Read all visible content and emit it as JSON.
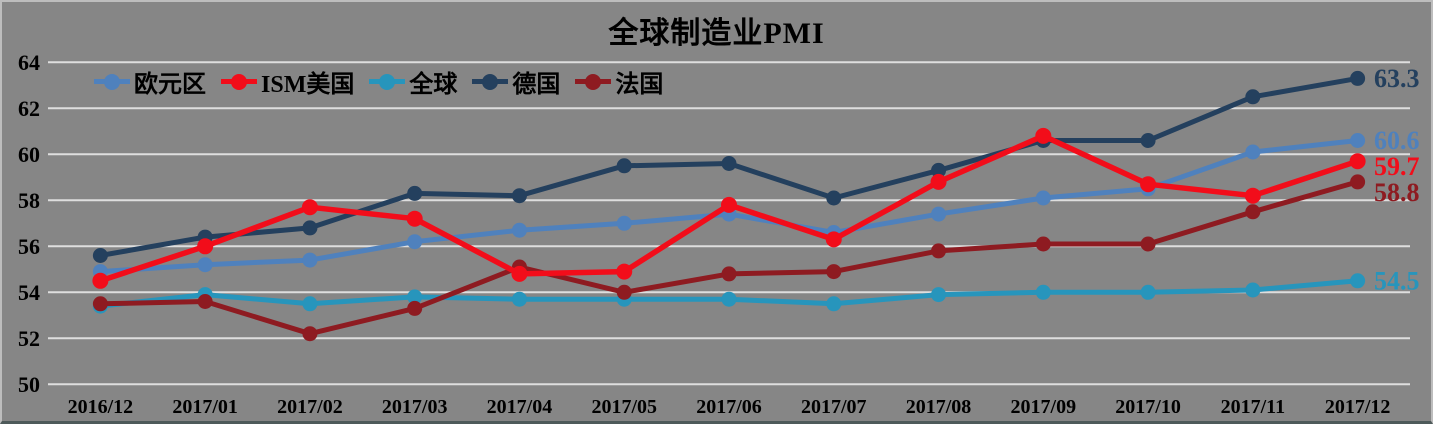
{
  "chart_data": {
    "type": "line",
    "title": "全球制造业PMI",
    "categories": [
      "2016/12",
      "2017/01",
      "2017/02",
      "2017/03",
      "2017/04",
      "2017/05",
      "2017/06",
      "2017/07",
      "2017/08",
      "2017/09",
      "2017/10",
      "2017/11",
      "2017/12"
    ],
    "series": [
      {
        "name": "欧元区",
        "color": "#4F81BD",
        "end_label": "60.6",
        "values": [
          54.9,
          55.2,
          55.4,
          56.2,
          56.7,
          57.0,
          57.4,
          56.6,
          57.4,
          58.1,
          58.5,
          60.1,
          60.6
        ]
      },
      {
        "name": "ISM美国",
        "color": "#F20D1A",
        "end_label": "59.7",
        "values": [
          54.5,
          56.0,
          57.7,
          57.2,
          54.8,
          54.9,
          57.8,
          56.3,
          58.8,
          60.8,
          58.7,
          58.2,
          59.7
        ]
      },
      {
        "name": "全球",
        "color": "#2795BC",
        "end_label": "54.5",
        "values": [
          53.4,
          53.9,
          53.5,
          53.8,
          53.7,
          53.7,
          53.7,
          53.5,
          53.9,
          54.0,
          54.0,
          54.1,
          54.5
        ]
      },
      {
        "name": "德国",
        "color": "#24405E",
        "end_label": "63.3",
        "values": [
          55.6,
          56.4,
          56.8,
          58.3,
          58.2,
          59.5,
          59.6,
          58.1,
          59.3,
          60.6,
          60.6,
          62.5,
          63.3
        ]
      },
      {
        "name": "法国",
        "color": "#8E1B21",
        "end_label": "58.8",
        "values": [
          53.5,
          53.6,
          52.2,
          53.3,
          55.1,
          54.0,
          54.8,
          54.9,
          55.8,
          56.1,
          56.1,
          57.5,
          58.8
        ]
      }
    ],
    "ylim": [
      50,
      64
    ],
    "yticks": [
      50,
      52,
      54,
      56,
      58,
      60,
      62,
      64
    ],
    "grid": "horizontal",
    "legend_position": "top-left",
    "background": "#868686",
    "gridline_color": "#DEDEDE",
    "text_color": "#000000"
  }
}
